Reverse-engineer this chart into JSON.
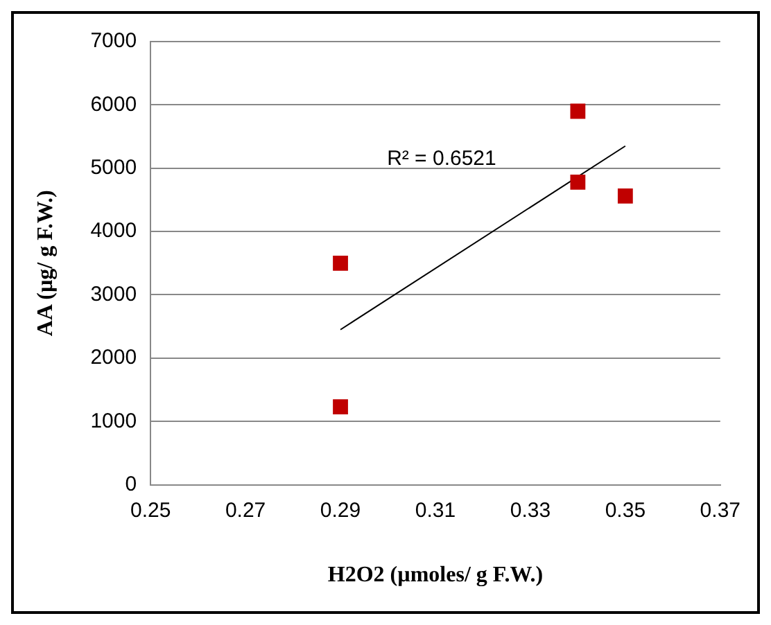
{
  "chart_data": {
    "type": "scatter",
    "xlabel": "H2O2 (µmoles/ g F.W.)",
    "ylabel": "AA (µg/ g F.W.)",
    "xlim": [
      0.25,
      0.37
    ],
    "xticks": [
      0.25,
      0.27,
      0.29,
      0.31,
      0.33,
      0.35,
      0.37
    ],
    "ylim": [
      0,
      7000
    ],
    "yticks": [
      0,
      1000,
      2000,
      3000,
      4000,
      5000,
      6000,
      7000
    ],
    "grid": "y",
    "marker": "square",
    "series": [
      {
        "color": "#c00000",
        "x": [
          0.29,
          0.29,
          0.34,
          0.34,
          0.35
        ],
        "values": [
          3500,
          1230,
          5900,
          4780,
          4560
        ]
      },
      {
        "type": "line",
        "color": "#000000",
        "marker": "none",
        "x": [
          0.29,
          0.35
        ],
        "values": [
          2450,
          5350
        ]
      }
    ],
    "annotations": [
      "R² = 0.6521"
    ]
  }
}
